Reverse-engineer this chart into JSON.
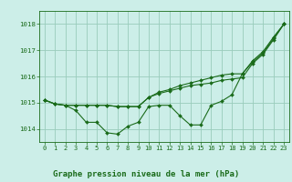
{
  "background_color": "#cceee8",
  "grid_color": "#99ccbb",
  "line_color": "#1a6b1a",
  "marker_color": "#1a6b1a",
  "xlabel": "Graphe pression niveau de la mer (hPa)",
  "xlabel_fontsize": 6.5,
  "ylim": [
    1013.5,
    1018.5
  ],
  "xlim": [
    -0.5,
    23.5
  ],
  "yticks": [
    1014,
    1015,
    1016,
    1017,
    1018
  ],
  "xticks": [
    0,
    1,
    2,
    3,
    4,
    5,
    6,
    7,
    8,
    9,
    10,
    11,
    12,
    13,
    14,
    15,
    16,
    17,
    18,
    19,
    20,
    21,
    22,
    23
  ],
  "series1": [
    1015.1,
    1014.95,
    1014.9,
    1014.7,
    1014.25,
    1014.25,
    1013.85,
    1013.8,
    1014.1,
    1014.25,
    1014.85,
    1014.9,
    1014.9,
    1014.5,
    1014.15,
    1014.15,
    1014.9,
    1015.05,
    1015.3,
    1016.1,
    1016.6,
    1016.95,
    1017.5,
    1018.0
  ],
  "series2": [
    1015.1,
    1014.95,
    1014.9,
    1014.9,
    1014.9,
    1014.9,
    1014.9,
    1014.85,
    1014.85,
    1014.85,
    1015.2,
    1015.4,
    1015.5,
    1015.65,
    1015.75,
    1015.85,
    1015.95,
    1016.05,
    1016.1,
    1016.1,
    1016.55,
    1016.9,
    1017.45,
    1018.0
  ],
  "series3": [
    1015.1,
    1014.95,
    1014.9,
    1014.9,
    1014.9,
    1014.9,
    1014.9,
    1014.85,
    1014.85,
    1014.85,
    1015.2,
    1015.35,
    1015.45,
    1015.55,
    1015.65,
    1015.7,
    1015.75,
    1015.85,
    1015.9,
    1015.95,
    1016.5,
    1016.85,
    1017.4,
    1018.0
  ],
  "tick_fontsize": 5.0,
  "marker_size": 2.0,
  "line_width": 0.8
}
